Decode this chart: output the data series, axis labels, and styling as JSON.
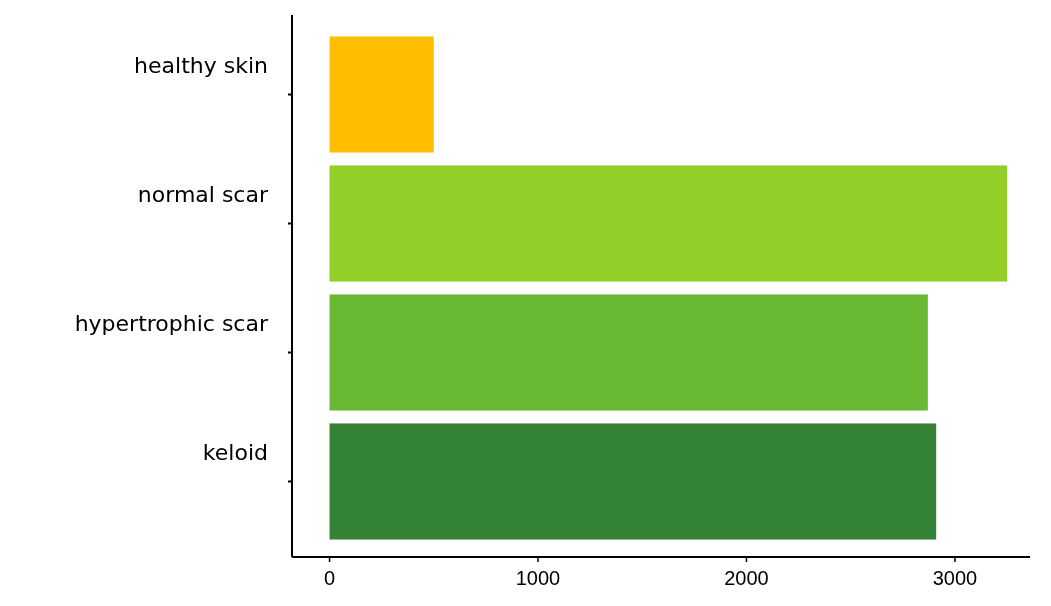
{
  "chart_data": {
    "type": "bar",
    "orientation": "horizontal",
    "categories": [
      "healthy skin",
      "normal scar",
      "hypertrophic scar",
      "keloid"
    ],
    "values": [
      500,
      3250,
      2870,
      2910
    ],
    "colors": [
      "#ffbe00",
      "#92cd28",
      "#69b934",
      "#358337"
    ],
    "xlim": [
      -180,
      3360
    ],
    "xticks": [
      0,
      1000,
      2000,
      3000
    ],
    "grid": false
  }
}
